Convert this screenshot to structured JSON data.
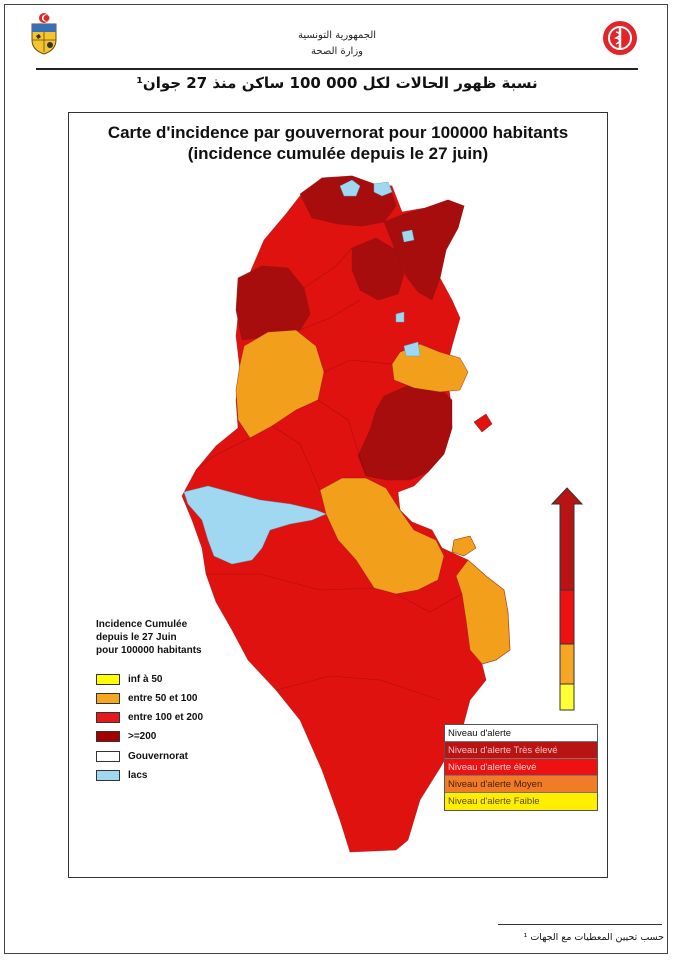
{
  "header": {
    "ministry_line1": "الجمهورية التونسية",
    "ministry_line2": "وزارة الصحة",
    "left_logo_icon": "tunisia-coat-of-arms-icon",
    "right_logo_icon": "ministry-of-health-emblem-icon"
  },
  "document": {
    "arabic_title": "نسبة ظهور الحالات لكل 000 100 ساكن منذ 27 جوان¹",
    "footnote": "حسب تحيين المعطيات مع الجهات ¹"
  },
  "map": {
    "title_line1": "Carte d'incidence par gouvernorat pour 100000 habitants",
    "title_line2": "(incidence cumulée depuis le 27 juin)"
  },
  "legend": {
    "title_line1": "Incidence Cumulée",
    "title_line2": "depuis le 27 Juin",
    "title_line3": "pour 100000 habitants",
    "items": [
      {
        "label": "inf à 50",
        "color": "#ffff00"
      },
      {
        "label": "entre 50 et 100",
        "color": "#f5a623"
      },
      {
        "label": "entre 100 et 200",
        "color": "#e31a1c"
      },
      {
        "label": ">=200",
        "color": "#a30000"
      },
      {
        "label": "Gouvernorat",
        "color": "#ffffff"
      },
      {
        "label": "lacs",
        "color": "#9fd8f0"
      }
    ]
  },
  "alert_table": {
    "rows": [
      {
        "label": "Niveau d'alerte",
        "color": "#ffffff"
      },
      {
        "label": "Niveau d'alerte Très élevé",
        "color": "#b81414"
      },
      {
        "label": "Niveau d'alerte élevé",
        "color": "#ee1111"
      },
      {
        "label": "Niveau d'alerte Moyen",
        "color": "#f07c2a"
      },
      {
        "label": "Niveau d'alerte Faible",
        "color": "#ffee00"
      }
    ]
  },
  "alert_scale": {
    "levels_bottom_to_top": [
      "#ffff33",
      "#f5a623",
      "#ee1111",
      "#b81414"
    ]
  }
}
